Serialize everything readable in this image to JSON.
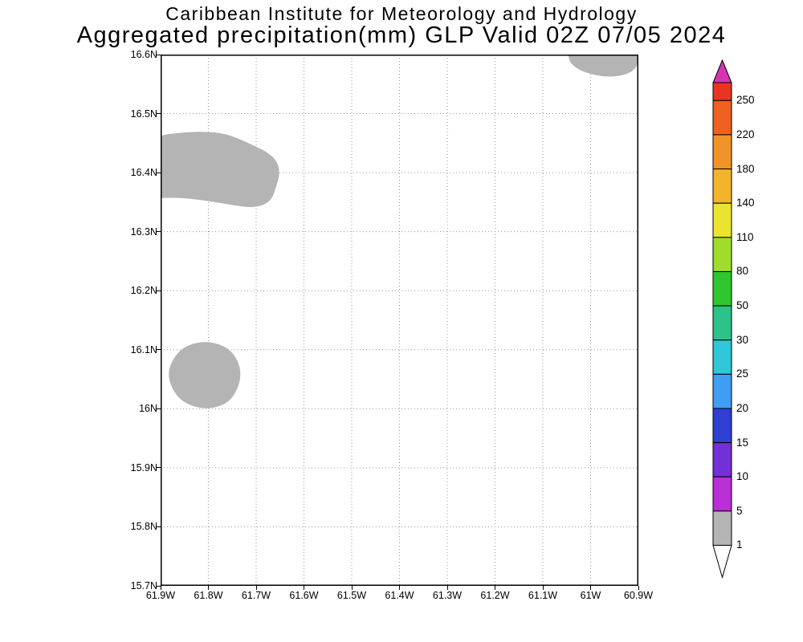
{
  "header": {
    "line1": "Caribbean Institute for Meteorology and Hydrology",
    "line2": "Aggregated precipitation(mm) GLP Valid 02Z 07/05 2024"
  },
  "chart_data": {
    "type": "heatmap",
    "title": "Caribbean Institute for Meteorology and Hydrology",
    "subtitle": "Aggregated precipitation(mm) GLP Valid 02Z 07/05 2024",
    "variable": "Aggregated precipitation",
    "units": "mm",
    "region_code": "GLP",
    "valid_time": "02Z 07/05 2024",
    "grid": true,
    "grid_color": "#969696",
    "frame_color": "#000000",
    "x_axis": {
      "range_lon_west": [
        61.9,
        60.9
      ],
      "labels": [
        "61.9W",
        "61.8W",
        "61.7W",
        "61.6W",
        "61.5W",
        "61.4W",
        "61.3W",
        "61.2W",
        "61.1W",
        "61W",
        "60.9W"
      ]
    },
    "y_axis": {
      "range_lat_north": [
        15.7,
        16.6
      ],
      "labels": [
        "15.7N",
        "15.8N",
        "15.9N",
        "16N",
        "16.1N",
        "16.2N",
        "16.3N",
        "16.4N",
        "16.5N",
        "16.6N"
      ]
    },
    "colorbar": {
      "position": "right",
      "levels_top_to_bottom": [
        250,
        220,
        180,
        140,
        110,
        80,
        50,
        30,
        25,
        20,
        15,
        10,
        5,
        1
      ],
      "segment_colors_top_to_bottom": [
        "#e93423",
        "#ee6120",
        "#f09429",
        "#f3b42c",
        "#ebe42e",
        "#9edd2a",
        "#2fc72f",
        "#2dc287",
        "#2fc6d8",
        "#3f9ef2",
        "#2f3fd3",
        "#7330d6",
        "#bb2fd6",
        "#b4b4b4"
      ],
      "over_arrow_color": "#d633b3",
      "under_arrow_color": "#ffffff"
    },
    "shaded_regions": [
      {
        "name": "northwest-band",
        "value_range_mm": "1-5",
        "color": "#b4b4b4",
        "polygon_lonW_latN": [
          [
            61.93,
            16.46
          ],
          [
            61.84,
            16.47
          ],
          [
            61.77,
            16.468
          ],
          [
            61.72,
            16.452
          ],
          [
            61.665,
            16.43
          ],
          [
            61.649,
            16.405
          ],
          [
            61.658,
            16.375
          ],
          [
            61.67,
            16.35
          ],
          [
            61.705,
            16.34
          ],
          [
            61.75,
            16.345
          ],
          [
            61.8,
            16.352
          ],
          [
            61.86,
            16.358
          ],
          [
            61.93,
            16.356
          ]
        ]
      },
      {
        "name": "west-blob",
        "value_range_mm": "1-5",
        "color": "#b4b4b4",
        "polygon_lonW_latN": [
          [
            61.728,
            16.059
          ],
          [
            61.748,
            16.098
          ],
          [
            61.79,
            16.114
          ],
          [
            61.832,
            16.112
          ],
          [
            61.866,
            16.096
          ],
          [
            61.888,
            16.06
          ],
          [
            61.868,
            16.02
          ],
          [
            61.83,
            16.002
          ],
          [
            61.786,
            16.0
          ],
          [
            61.748,
            16.016
          ]
        ]
      },
      {
        "name": "northeast-edge-blob",
        "value_range_mm": "1-5",
        "color": "#b4b4b4",
        "polygon_lonW_latN": [
          [
            61.045,
            16.625
          ],
          [
            61.048,
            16.59
          ],
          [
            61.026,
            16.574
          ],
          [
            60.988,
            16.564
          ],
          [
            60.948,
            16.562
          ],
          [
            60.916,
            16.569
          ],
          [
            60.9,
            16.582
          ],
          [
            60.897,
            16.625
          ]
        ]
      }
    ]
  }
}
